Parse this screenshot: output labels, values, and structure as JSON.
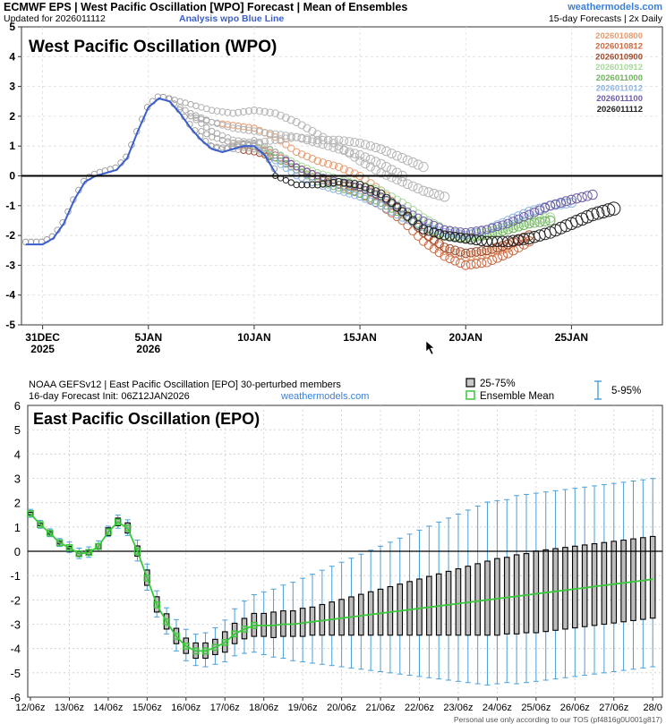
{
  "chart_data": [
    {
      "type": "line",
      "header": {
        "title": "ECMWF EPS | West Pacific Oscillation [WPO] Forecast | Mean of Ensembles",
        "updated": "Updated for 2026011112",
        "analysis_label": "Analysis wpo Blue Line",
        "brand": "weathermodels.com",
        "forecast_info": "15-day Forecasts | 2x Daily"
      },
      "title": "West Pacific Oscillation (WPO)",
      "xlabel": "",
      "ylabel": "",
      "x_unit": "days since 31 DEC 2025",
      "xlim": [
        -1,
        29.3
      ],
      "ylim": [
        -5,
        5
      ],
      "y_ticks": [
        "5",
        "4",
        "3",
        "2",
        "1",
        "0",
        "-1",
        "-2",
        "-3",
        "-4",
        "-5"
      ],
      "x_ticks": [
        {
          "x": 0,
          "label": "31DEC",
          "sub": "2025"
        },
        {
          "x": 5,
          "label": "5JAN",
          "sub": "2026"
        },
        {
          "x": 10,
          "label": "10JAN",
          "sub": ""
        },
        {
          "x": 15,
          "label": "15JAN",
          "sub": ""
        },
        {
          "x": 20,
          "label": "20JAN",
          "sub": ""
        },
        {
          "x": 25,
          "label": "25JAN",
          "sub": ""
        }
      ],
      "analysis": {
        "name": "Analysis wpo",
        "color": "#3a5fcd",
        "x": [
          -0.8,
          0,
          0.5,
          1,
          1.5,
          2,
          2.5,
          3,
          3.5,
          4,
          4.5,
          5,
          5.5,
          6,
          6.5,
          7,
          7.5,
          8,
          8.5,
          9,
          9.5,
          10,
          10.5,
          11
        ],
        "y": [
          -2.3,
          -2.3,
          -2.1,
          -1.6,
          -0.8,
          -0.2,
          0.0,
          0.1,
          0.2,
          0.6,
          1.5,
          2.3,
          2.6,
          2.5,
          2.1,
          1.6,
          1.2,
          0.9,
          0.8,
          0.9,
          1.0,
          1.0,
          0.7,
          0.1
        ]
      },
      "series": [
        {
          "name": "2026010800",
          "color": "#e69b6f",
          "start": 7,
          "end": 22,
          "x": [
            7,
            8,
            9,
            10,
            11,
            12,
            13,
            14,
            15,
            16,
            17,
            18,
            19,
            20,
            21,
            22
          ],
          "y": [
            2.0,
            1.8,
            1.7,
            1.6,
            1.3,
            0.8,
            0.5,
            0.3,
            0.0,
            -0.5,
            -1.2,
            -1.9,
            -2.5,
            -2.7,
            -2.6,
            -2.4
          ]
        },
        {
          "name": "2026010812",
          "color": "#c96a45",
          "start": 7.5,
          "end": 23,
          "x": [
            7.5,
            8,
            9,
            10,
            11,
            12,
            13,
            14,
            15,
            16,
            17,
            18,
            19,
            20,
            21,
            22,
            23
          ],
          "y": [
            1.5,
            1.3,
            1.1,
            1.0,
            0.7,
            0.3,
            0.0,
            -0.3,
            -0.6,
            -1.0,
            -1.5,
            -2.2,
            -2.7,
            -3.0,
            -2.9,
            -2.6,
            -2.2
          ]
        },
        {
          "name": "2026010900",
          "color": "#9e4a2c",
          "start": 8,
          "end": 23,
          "x": [
            8,
            9,
            10,
            11,
            12,
            13,
            14,
            15,
            16,
            17,
            18,
            19,
            20,
            21,
            22,
            23
          ],
          "y": [
            1.0,
            0.9,
            0.8,
            0.6,
            0.2,
            -0.1,
            -0.3,
            -0.4,
            -0.7,
            -1.2,
            -1.9,
            -2.4,
            -2.6,
            -2.5,
            -2.3,
            -2.0
          ]
        },
        {
          "name": "2026010912",
          "color": "#a8d89a",
          "start": 8.5,
          "end": 24,
          "x": [
            8.5,
            9,
            10,
            11,
            12,
            13,
            14,
            15,
            16,
            17,
            18,
            19,
            20,
            21,
            22,
            23,
            24
          ],
          "y": [
            1.2,
            1.1,
            1.0,
            0.8,
            0.4,
            0.1,
            -0.1,
            -0.3,
            -0.5,
            -0.9,
            -1.4,
            -1.8,
            -2.0,
            -1.9,
            -1.7,
            -1.5,
            -1.4
          ]
        },
        {
          "name": "2026011000",
          "color": "#6fb35c",
          "start": 9,
          "end": 24,
          "x": [
            9,
            10,
            11,
            12,
            13,
            14,
            15,
            16,
            17,
            18,
            19,
            20,
            21,
            22,
            23,
            24
          ],
          "y": [
            1.0,
            0.9,
            0.6,
            0.2,
            -0.2,
            -0.4,
            -0.6,
            -0.9,
            -1.3,
            -1.7,
            -2.0,
            -2.1,
            -2.0,
            -1.8,
            -1.6,
            -1.5
          ]
        },
        {
          "name": "2026011012",
          "color": "#8fb4e0",
          "start": 9.5,
          "end": 25,
          "x": [
            9.5,
            10,
            11,
            12,
            13,
            14,
            15,
            16,
            17,
            18,
            19,
            20,
            21,
            22,
            23,
            24,
            25
          ],
          "y": [
            1.1,
            1.0,
            0.5,
            0.0,
            -0.3,
            -0.5,
            -0.7,
            -1.0,
            -1.4,
            -1.7,
            -1.9,
            -2.0,
            -1.8,
            -1.5,
            -1.2,
            -1.0,
            -0.9
          ]
        },
        {
          "name": "2026011100",
          "color": "#6f5ba8",
          "start": 10,
          "end": 26.2,
          "x": [
            10,
            11,
            12,
            13,
            14,
            15,
            16,
            17,
            18,
            19,
            20,
            21,
            22,
            23,
            24,
            25,
            26.2
          ],
          "y": [
            1.2,
            0.8,
            0.3,
            0.0,
            -0.2,
            -0.4,
            -0.7,
            -1.1,
            -1.5,
            -1.8,
            -1.9,
            -1.8,
            -1.6,
            -1.3,
            -1.0,
            -0.8,
            -0.6
          ]
        },
        {
          "name": "2026011112",
          "color": "#222222",
          "start": 11,
          "end": 27,
          "x": [
            11,
            12,
            13,
            14,
            15,
            16,
            17,
            18,
            19,
            20,
            21,
            22,
            23,
            24,
            25,
            26,
            27
          ],
          "y": [
            0.0,
            -0.3,
            -0.3,
            -0.2,
            -0.3,
            -0.6,
            -1.2,
            -1.8,
            -2.0,
            -2.1,
            -2.2,
            -2.2,
            -2.1,
            -1.9,
            -1.6,
            -1.3,
            -1.1
          ]
        },
        {
          "name": "extra-1",
          "color": "#b5b5b5",
          "start": 6,
          "end": 19,
          "x": [
            6,
            7,
            8,
            9,
            10,
            11,
            12,
            13,
            14,
            15,
            16,
            17,
            18,
            19
          ],
          "y": [
            2.6,
            2.4,
            2.2,
            2.1,
            2.2,
            2.1,
            1.8,
            1.4,
            1.0,
            0.5,
            0.1,
            -0.2,
            -0.5,
            -0.7
          ]
        },
        {
          "name": "extra-2",
          "color": "#b5b5b5",
          "start": 6.5,
          "end": 18,
          "x": [
            6.5,
            7,
            8,
            9,
            10,
            11,
            12,
            13,
            14,
            15,
            16,
            17,
            18
          ],
          "y": [
            2.3,
            2.1,
            1.8,
            1.6,
            1.5,
            1.4,
            1.3,
            1.2,
            1.2,
            1.1,
            0.9,
            0.6,
            0.3
          ]
        },
        {
          "name": "extra-3",
          "color": "#b5b5b5",
          "start": 7,
          "end": 17,
          "x": [
            7,
            8,
            9,
            10,
            11,
            12,
            13,
            14,
            15,
            16,
            17
          ],
          "y": [
            2.0,
            1.5,
            1.2,
            1.1,
            1.2,
            1.3,
            1.1,
            0.9,
            0.7,
            0.4,
            0.0
          ]
        }
      ]
    },
    {
      "type": "box",
      "header": {
        "title": "NOAA GEFSv12 | East Pacific Oscillation [EPO]  30-perturbed members",
        "init": "16-day Forecast Init: 06Z12JAN2026",
        "brand": "weathermodels.com"
      },
      "legend": {
        "iqr": "25-75%",
        "mean": "Ensemble Mean",
        "range": "5-95%"
      },
      "title": "East Pacific Oscillation (EPO)",
      "footer": "Personal use only according to our TOS (pf4816g0U001g817)",
      "ylim": [
        -6,
        6
      ],
      "y_ticks": [
        "6",
        "5",
        "4",
        "3",
        "2",
        "1",
        "0",
        "-1",
        "-2",
        "-3",
        "-4",
        "-5",
        "-6"
      ],
      "x_ticks": [
        "12/06z",
        "13/06z",
        "14/06z",
        "15/06z",
        "16/06z",
        "17/06z",
        "18/06z",
        "19/06z",
        "20/06z",
        "21/06z",
        "22/06z",
        "23/06z",
        "24/06z",
        "25/06z",
        "26/06z",
        "27/06z",
        "28/0"
      ],
      "step_hours": 6,
      "mean": [
        1.55,
        1.1,
        0.75,
        0.35,
        0.15,
        -0.1,
        -0.05,
        0.2,
        0.8,
        1.2,
        0.95,
        0.0,
        -1.1,
        -2.2,
        -2.9,
        -3.5,
        -3.9,
        -4.1,
        -4.1,
        -3.95,
        -3.75,
        -3.4,
        -3.2,
        -3.05,
        -3.05,
        -3.05,
        -3.0,
        -3.0,
        -2.95,
        -2.9,
        -2.85,
        -2.8,
        -2.75,
        -2.7,
        -2.65,
        -2.6,
        -2.55,
        -2.5,
        -2.45,
        -2.4,
        -2.35,
        -2.3,
        -2.25,
        -2.2,
        -2.15,
        -2.1,
        -2.05,
        -2.0,
        -1.95,
        -1.9,
        -1.85,
        -1.8,
        -1.75,
        -1.7,
        -1.65,
        -1.6,
        -1.55,
        -1.5,
        -1.45,
        -1.4,
        -1.35,
        -1.3,
        -1.25,
        -1.2,
        -1.15,
        -1.1,
        -1.05,
        -1.0,
        -0.95,
        -0.9,
        -0.85,
        -0.75,
        -0.6,
        -0.4,
        -0.2
      ],
      "q25_offset": [
        0.05,
        0.05,
        0.05,
        0.05,
        0.05,
        0.1,
        0.1,
        0.1,
        0.15,
        0.15,
        0.2,
        0.2,
        0.3,
        0.3,
        0.3,
        0.3,
        0.3,
        0.3,
        0.3,
        0.3,
        0.4,
        0.4,
        0.4,
        0.45,
        0.45,
        0.5,
        0.5,
        0.5,
        0.55,
        0.55,
        0.6,
        0.65,
        0.7,
        0.75,
        0.8,
        0.85,
        0.9,
        0.95,
        1.0,
        1.05,
        1.1,
        1.15,
        1.2,
        1.25,
        1.3,
        1.35,
        1.4,
        1.45,
        1.5,
        1.5,
        1.55,
        1.55,
        1.6,
        1.6,
        1.6,
        1.6,
        1.6,
        1.6,
        1.6,
        1.6,
        1.6,
        1.6,
        1.6,
        1.6,
        1.6,
        1.6,
        1.6,
        1.6,
        1.6,
        1.6,
        1.6,
        1.6,
        1.6,
        1.6,
        1.6
      ],
      "whisker_offset": [
        0.15,
        0.15,
        0.15,
        0.15,
        0.2,
        0.2,
        0.2,
        0.2,
        0.2,
        0.25,
        0.3,
        0.4,
        0.5,
        0.5,
        0.5,
        0.6,
        0.6,
        0.6,
        0.65,
        0.7,
        0.8,
        0.9,
        1.0,
        1.1,
        1.2,
        1.3,
        1.4,
        1.5,
        1.6,
        1.7,
        1.8,
        1.9,
        2.0,
        2.1,
        2.2,
        2.3,
        2.4,
        2.5,
        2.6,
        2.7,
        2.8,
        2.9,
        3.0,
        3.1,
        3.2,
        3.3,
        3.4,
        3.5,
        3.5,
        3.5,
        3.6,
        3.6,
        3.6,
        3.6,
        3.6,
        3.6,
        3.6,
        3.6,
        3.6,
        3.6,
        3.6,
        3.6,
        3.6,
        3.6,
        3.6,
        3.6,
        3.6,
        3.6,
        3.6,
        3.6,
        3.6,
        3.6,
        3.6,
        3.6,
        3.6
      ]
    }
  ]
}
